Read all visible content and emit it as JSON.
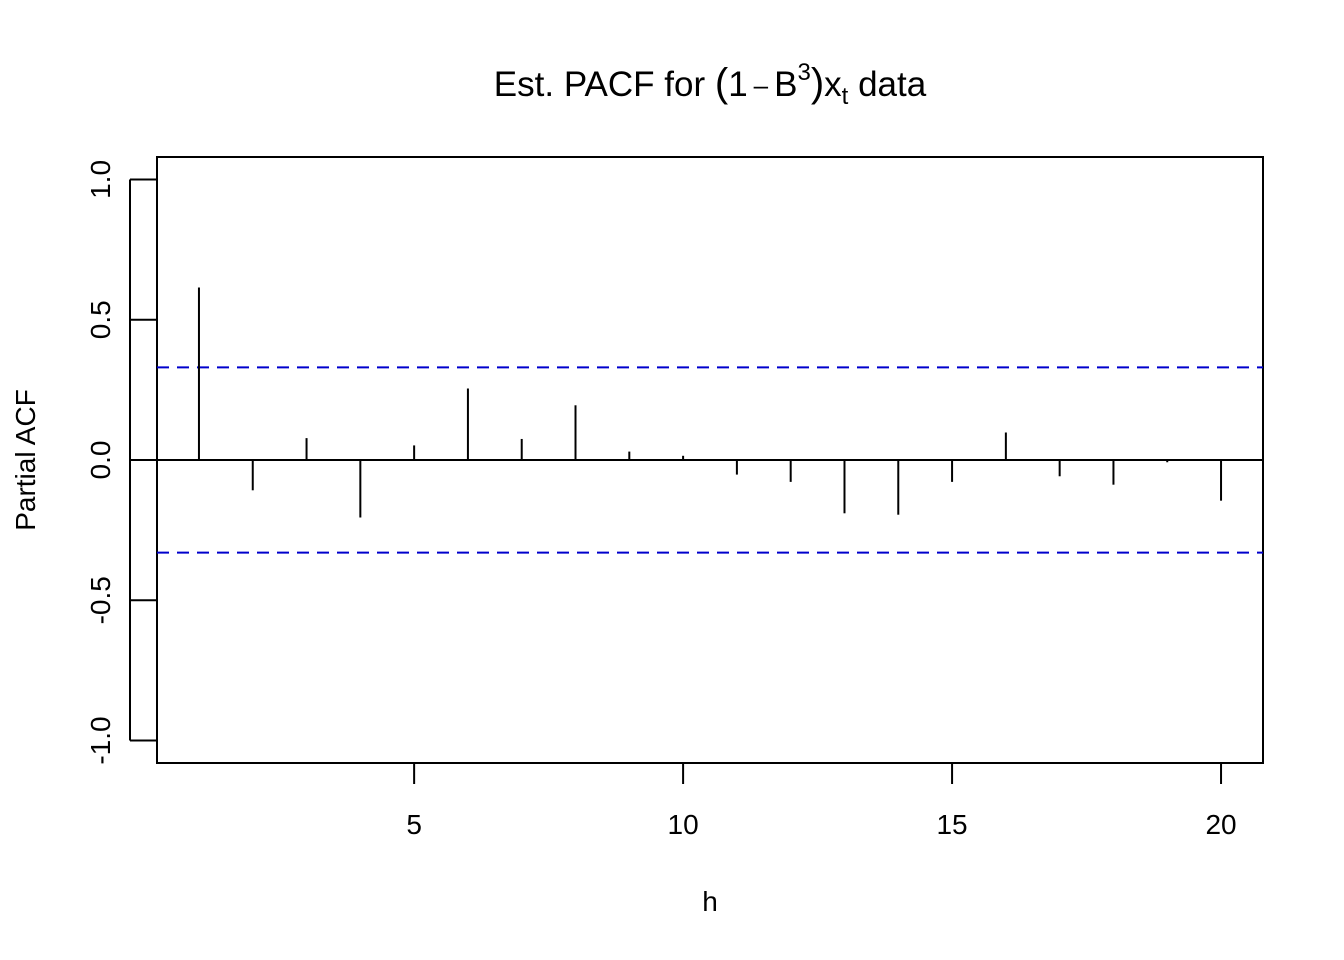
{
  "chart_data": {
    "type": "bar",
    "title": {
      "prefix": "Est. PACF for ",
      "open_paren": "(",
      "one": "1",
      "minus": "–",
      "B": "B",
      "exponent": "3",
      "close_paren": ")",
      "x": "x",
      "subscript": "t",
      "suffix": " data"
    },
    "xlabel": "h",
    "ylabel": "Partial ACF",
    "xlim": [
      0.22,
      20.78
    ],
    "ylim": [
      -1.08,
      1.08
    ],
    "xticks": [
      5,
      10,
      15,
      20
    ],
    "xtick_labels": [
      "5",
      "10",
      "15",
      "20"
    ],
    "yticks": [
      -1.0,
      -0.5,
      0.0,
      0.5,
      1.0
    ],
    "ytick_labels": [
      "-1.0",
      "-0.5",
      "0.0",
      "0.5",
      "1.0"
    ],
    "lags": [
      1,
      2,
      3,
      4,
      5,
      6,
      7,
      8,
      9,
      10,
      11,
      12,
      13,
      14,
      15,
      16,
      17,
      18,
      19,
      20
    ],
    "values": [
      0.615,
      -0.108,
      0.078,
      -0.205,
      0.052,
      0.255,
      0.075,
      0.195,
      0.03,
      0.015,
      -0.052,
      -0.078,
      -0.19,
      -0.195,
      -0.078,
      0.098,
      -0.058,
      -0.088,
      -0.008,
      -0.145
    ],
    "confidence_bounds": [
      0.33,
      -0.33
    ],
    "colors": {
      "bars": "#000000",
      "confidence": "#0000cc",
      "axis": "#000000"
    },
    "grid": false,
    "legend": "none"
  }
}
